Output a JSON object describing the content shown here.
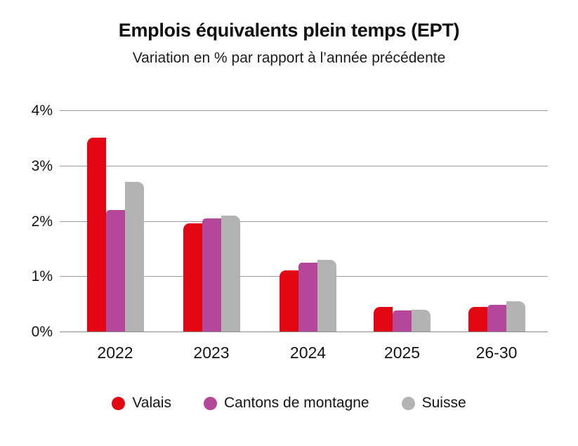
{
  "chart_data": {
    "type": "bar",
    "title": "Emplois équivalents plein temps (EPT)",
    "subtitle": "Variation en % par rapport à l’année précédente",
    "categories": [
      "2022",
      "2023",
      "2024",
      "2025",
      "26-30"
    ],
    "series": [
      {
        "name": "Valais",
        "color": "#e30613",
        "values": [
          3.5,
          1.95,
          1.1,
          0.45,
          0.45
        ]
      },
      {
        "name": "Cantons de montagne",
        "color": "#b4479a",
        "values": [
          2.2,
          2.05,
          1.25,
          0.38,
          0.48
        ]
      },
      {
        "name": "Suisse",
        "color": "#b3b3b3",
        "values": [
          2.7,
          2.1,
          1.3,
          0.4,
          0.55
        ]
      }
    ],
    "yticks": [
      {
        "label": "4%",
        "value": 4
      },
      {
        "label": "3%",
        "value": 3
      },
      {
        "label": "2%",
        "value": 2
      },
      {
        "label": "1%",
        "value": 1
      },
      {
        "label": "0%",
        "value": 0
      }
    ],
    "ylim": [
      0,
      4
    ],
    "grid": true,
    "legend_position": "bottom",
    "colors": {
      "background": "#ffffff",
      "gridline": "#9c9c9c",
      "text": "#1a1a1a"
    }
  }
}
